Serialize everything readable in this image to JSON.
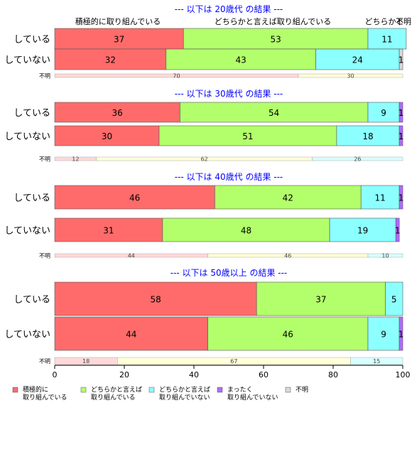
{
  "chart_data": {
    "type": "bar",
    "orientation": "horizontal",
    "stacked": true,
    "xlim": [
      0,
      100
    ],
    "x_ticks": [
      "0",
      "20",
      "40",
      "60",
      "80",
      "100"
    ],
    "grid": false,
    "legend_position": "bottom-left",
    "legend": [
      {
        "label": "積極的に\n取り組んでいる",
        "color": "#ff6b6b"
      },
      {
        "label": "どちらかと言えば\n取り組んでいる",
        "color": "#b3ff6b"
      },
      {
        "label": "どちらかと言えば\n取り組んでいない",
        "color": "#8cffff"
      },
      {
        "label": "まったく\n取り組んでいない",
        "color": "#b06bff"
      },
      {
        "label": "不明",
        "color": "#d9d9d9"
      }
    ],
    "header_labels": [
      "積極的に取り組んでいる",
      "どちらかと言えば取り組んでいる",
      "どちらかと",
      "不明"
    ],
    "missing_colors": [
      "#ffd9d9",
      "#ffffd9",
      "#d9ffff"
    ],
    "groups": [
      {
        "title": "--- 以下は 20歳代 の結果 ---",
        "categories": [
          "している",
          "していない"
        ],
        "series_values": [
          [
            37,
            53,
            11,
            0,
            0
          ],
          [
            32,
            43,
            24,
            0,
            1
          ]
        ],
        "missing_label": "不明",
        "missing_values": [
          70,
          30,
          0
        ]
      },
      {
        "title": "--- 以下は 30歳代 の結果 ---",
        "categories": [
          "している",
          "していない"
        ],
        "series_values": [
          [
            36,
            54,
            9,
            1,
            0
          ],
          [
            30,
            51,
            18,
            1,
            0
          ]
        ],
        "missing_label": "不明",
        "missing_values": [
          12,
          62,
          26
        ]
      },
      {
        "title": "--- 以下は 40歳代 の結果 ---",
        "categories": [
          "している",
          "していない"
        ],
        "series_values": [
          [
            46,
            42,
            11,
            1,
            0
          ],
          [
            31,
            48,
            19,
            1,
            0
          ]
        ],
        "missing_label": "不明",
        "missing_values": [
          44,
          46,
          10
        ]
      },
      {
        "title": "--- 以下は 50歳以上 の結果 ---",
        "categories": [
          "している",
          "していない"
        ],
        "series_values": [
          [
            58,
            37,
            5,
            0,
            0
          ],
          [
            44,
            46,
            9,
            1,
            0
          ]
        ],
        "missing_label": "不明",
        "missing_values": [
          18,
          67,
          15
        ]
      }
    ]
  }
}
